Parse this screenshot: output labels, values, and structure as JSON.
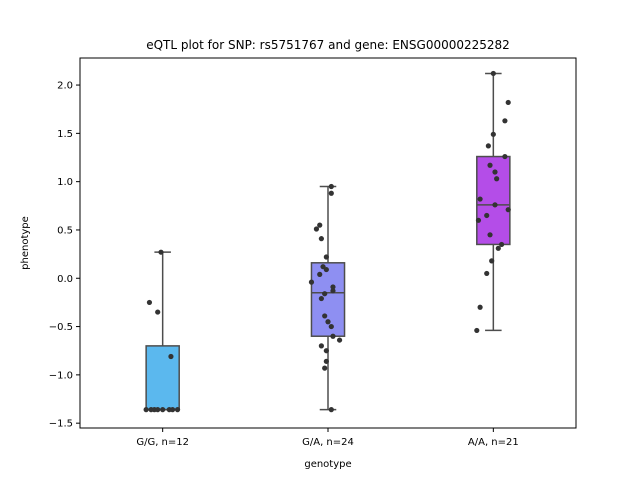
{
  "chart_data": {
    "type": "box",
    "title": "eQTL plot for SNP: rs5751767 and gene: ENSG00000225282",
    "xlabel": "genotype",
    "ylabel": "phenotype",
    "ylim": [
      -1.55,
      2.28
    ],
    "yticks": [
      -1.5,
      -1.0,
      -0.5,
      0.0,
      0.5,
      1.0,
      1.5,
      2.0
    ],
    "ytick_labels": [
      "−1.5",
      "−1.0",
      "−0.5",
      "0.0",
      "0.5",
      "1.0",
      "1.5",
      "2.0"
    ],
    "grid": false,
    "categories": [
      "G/G, n=12",
      "G/A, n=24",
      "A/A, n=21"
    ],
    "series": [
      {
        "color": "#5bb8ee",
        "box": {
          "whisker_low": -1.36,
          "q1": -1.36,
          "median": -1.36,
          "q3": -0.7,
          "whisker_high": 0.27
        },
        "points": [
          [
            -0.1,
            -1.36
          ],
          [
            -0.07,
            -1.36
          ],
          [
            -0.05,
            -1.36
          ],
          [
            -0.03,
            -1.36
          ],
          [
            0.0,
            -1.36
          ],
          [
            0.04,
            -1.36
          ],
          [
            0.06,
            -1.36
          ],
          [
            0.09,
            -1.36
          ],
          [
            -0.08,
            -0.25
          ],
          [
            -0.03,
            -0.35
          ],
          [
            -0.01,
            0.27
          ],
          [
            0.05,
            -0.81
          ]
        ]
      },
      {
        "color": "#8e8ff2",
        "box": {
          "whisker_low": -1.36,
          "q1": -0.6,
          "median": -0.15,
          "q3": 0.16,
          "whisker_high": 0.95
        },
        "points": [
          [
            0.02,
            0.95
          ],
          [
            0.02,
            0.88
          ],
          [
            -0.05,
            0.55
          ],
          [
            -0.07,
            0.51
          ],
          [
            -0.04,
            0.41
          ],
          [
            -0.01,
            0.22
          ],
          [
            -0.03,
            0.12
          ],
          [
            -0.01,
            0.09
          ],
          [
            -0.1,
            -0.04
          ],
          [
            -0.05,
            0.04
          ],
          [
            0.03,
            -0.09
          ],
          [
            0.03,
            -0.13
          ],
          [
            -0.02,
            -0.16
          ],
          [
            -0.04,
            -0.21
          ],
          [
            -0.02,
            -0.39
          ],
          [
            0.0,
            -0.45
          ],
          [
            0.02,
            -0.5
          ],
          [
            0.03,
            -0.6
          ],
          [
            0.07,
            -0.64
          ],
          [
            -0.04,
            -0.7
          ],
          [
            -0.01,
            -0.75
          ],
          [
            -0.01,
            -0.86
          ],
          [
            -0.02,
            -0.93
          ],
          [
            0.02,
            -1.36
          ]
        ]
      },
      {
        "color": "#b44de8",
        "box": {
          "whisker_low": -0.54,
          "q1": 0.35,
          "median": 0.76,
          "q3": 1.26,
          "whisker_high": 2.12
        },
        "points": [
          [
            0.0,
            2.12
          ],
          [
            0.09,
            1.82
          ],
          [
            0.07,
            1.63
          ],
          [
            0.0,
            1.49
          ],
          [
            -0.03,
            1.37
          ],
          [
            0.07,
            1.26
          ],
          [
            -0.02,
            1.17
          ],
          [
            0.01,
            1.1
          ],
          [
            0.02,
            1.03
          ],
          [
            -0.08,
            0.82
          ],
          [
            0.01,
            0.76
          ],
          [
            0.09,
            0.71
          ],
          [
            -0.04,
            0.65
          ],
          [
            -0.09,
            0.6
          ],
          [
            -0.02,
            0.45
          ],
          [
            0.05,
            0.35
          ],
          [
            0.03,
            0.31
          ],
          [
            -0.01,
            0.18
          ],
          [
            -0.04,
            0.05
          ],
          [
            -0.08,
            -0.3
          ],
          [
            -0.1,
            -0.54
          ]
        ]
      }
    ]
  }
}
